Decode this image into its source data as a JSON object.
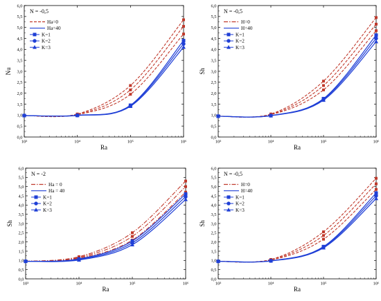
{
  "chart_data": [
    {
      "type": "line",
      "annotation": "N = -0,5",
      "xlabel": "Ra",
      "ylabel": "Nu",
      "xscale": "log",
      "xlim": [
        1000,
        1000000
      ],
      "ylim": [
        0.0,
        6.0
      ],
      "x_ticks": [
        "10³",
        "10⁴",
        "10⁵",
        "10⁶"
      ],
      "y_ticks": [
        "0,0",
        "0,5",
        "1,0",
        "1,5",
        "2,0",
        "2,5",
        "3,0",
        "3,5",
        "4,0",
        "4,5",
        "5,0",
        "5,5",
        "6,0"
      ],
      "legend_position": "top-left",
      "legend_entries": [
        {
          "label": "Ha=0",
          "style": "dashed",
          "color": "#c0392b"
        },
        {
          "label": "Ha=40",
          "style": "solid",
          "color": "#1f3fd6"
        },
        {
          "label": "K=1",
          "marker": "square",
          "color": "#1f3fd6"
        },
        {
          "label": "K=2",
          "marker": "circle",
          "color": "#1f3fd6"
        },
        {
          "label": "K=3",
          "marker": "triangle",
          "color": "#1f3fd6"
        }
      ],
      "x": [
        1000,
        10000,
        100000,
        1000000
      ],
      "series": [
        {
          "style": "dashed",
          "color": "#c0392b",
          "values": [
            0.98,
            1.05,
            2.35,
            5.35
          ]
        },
        {
          "style": "dashed",
          "color": "#c0392b",
          "values": [
            0.98,
            1.03,
            2.15,
            5.05
          ]
        },
        {
          "style": "dashed",
          "color": "#c0392b",
          "values": [
            0.98,
            1.02,
            1.95,
            4.7
          ]
        },
        {
          "style": "solid",
          "color": "#1f3fd6",
          "marker": "square",
          "values": [
            0.98,
            0.99,
            1.45,
            4.4
          ]
        },
        {
          "style": "solid",
          "color": "#1f3fd6",
          "marker": "circle",
          "values": [
            0.98,
            0.985,
            1.43,
            4.25
          ]
        },
        {
          "style": "solid",
          "color": "#1f3fd6",
          "marker": "triangle",
          "values": [
            0.98,
            0.98,
            1.4,
            4.1
          ]
        }
      ]
    },
    {
      "type": "line",
      "annotation": "N = -0,5",
      "xlabel": "Ra",
      "ylabel": "Sh",
      "xscale": "log",
      "xlim": [
        1000,
        1000000
      ],
      "ylim": [
        0.0,
        6.0
      ],
      "x_ticks": [
        "10³",
        "10⁴",
        "10⁵",
        "10⁶"
      ],
      "y_ticks": [
        "0,0",
        "0,5",
        "1,0",
        "1,5",
        "2,0",
        "2,5",
        "3,0",
        "3,5",
        "4,0",
        "4,5",
        "5,0",
        "5,5",
        "6,0"
      ],
      "legend_position": "top-left",
      "legend_entries": [
        {
          "label": "H=0",
          "style": "dashdot",
          "color": "#c0392b"
        },
        {
          "label": "H=40",
          "style": "solid",
          "color": "#1f3fd6"
        },
        {
          "label": "K=1",
          "marker": "square",
          "color": "#1f3fd6"
        },
        {
          "label": "K=2",
          "marker": "circle",
          "color": "#1f3fd6"
        },
        {
          "label": "K=3",
          "marker": "triangle",
          "color": "#1f3fd6"
        }
      ],
      "x": [
        1000,
        10000,
        100000,
        1000000
      ],
      "series": [
        {
          "style": "dashed",
          "color": "#c0392b",
          "values": [
            0.95,
            1.05,
            2.55,
            5.45
          ]
        },
        {
          "style": "dashed",
          "color": "#c0392b",
          "values": [
            0.95,
            1.03,
            2.35,
            5.15
          ]
        },
        {
          "style": "dashed",
          "color": "#c0392b",
          "values": [
            0.95,
            1.02,
            2.15,
            4.85
          ]
        },
        {
          "style": "solid",
          "color": "#1f3fd6",
          "marker": "square",
          "values": [
            0.95,
            0.98,
            1.75,
            4.65
          ]
        },
        {
          "style": "solid",
          "color": "#1f3fd6",
          "marker": "circle",
          "values": [
            0.95,
            0.975,
            1.72,
            4.5
          ]
        },
        {
          "style": "solid",
          "color": "#1f3fd6",
          "marker": "triangle",
          "values": [
            0.95,
            0.97,
            1.68,
            4.35
          ]
        }
      ]
    },
    {
      "type": "line",
      "annotation": "N = -2",
      "xlabel": "Ra",
      "ylabel": "Sh",
      "xscale": "log",
      "xlim": [
        1000,
        1000000
      ],
      "ylim": [
        0.0,
        6.0
      ],
      "x_ticks": [
        "10³",
        "10⁴",
        "10⁵",
        "10⁶"
      ],
      "y_ticks": [
        "0,0",
        "0,5",
        "1,0",
        "1,5",
        "2,0",
        "2,5",
        "3,0",
        "3,5",
        "4,0",
        "4,5",
        "5,0",
        "5,5",
        "6,0"
      ],
      "legend_position": "top-left",
      "legend_entries": [
        {
          "label": "Ha = 0",
          "style": "dashdot",
          "color": "#c0392b"
        },
        {
          "label": "Ha = 40",
          "style": "solid",
          "color": "#1f3fd6"
        },
        {
          "label": "K=1",
          "marker": "square",
          "color": "#1f3fd6"
        },
        {
          "label": "K=2",
          "marker": "circle",
          "color": "#1f3fd6"
        },
        {
          "label": "K=3",
          "marker": "triangle",
          "color": "#1f3fd6"
        }
      ],
      "x": [
        1000,
        10000,
        100000,
        1000000
      ],
      "series": [
        {
          "style": "dashdot",
          "color": "#c0392b",
          "values": [
            0.95,
            1.2,
            2.5,
            5.3
          ]
        },
        {
          "style": "dashdot",
          "color": "#c0392b",
          "values": [
            0.95,
            1.16,
            2.3,
            5.0
          ]
        },
        {
          "style": "dashdot",
          "color": "#c0392b",
          "values": [
            0.95,
            1.12,
            2.1,
            4.7
          ]
        },
        {
          "style": "solid",
          "color": "#1f3fd6",
          "marker": "square",
          "values": [
            0.95,
            1.08,
            2.05,
            4.6
          ]
        },
        {
          "style": "solid",
          "color": "#1f3fd6",
          "marker": "circle",
          "values": [
            0.95,
            1.05,
            1.95,
            4.45
          ]
        },
        {
          "style": "solid",
          "color": "#1f3fd6",
          "marker": "triangle",
          "values": [
            0.95,
            1.02,
            1.85,
            4.3
          ]
        }
      ]
    },
    {
      "type": "line",
      "annotation": "N = -0,5",
      "xlabel": "Ra",
      "ylabel": "Sh",
      "xscale": "log",
      "xlim": [
        1000,
        1000000
      ],
      "ylim": [
        0.0,
        6.0
      ],
      "x_ticks": [
        "10³",
        "10⁴",
        "10⁵",
        "10⁶"
      ],
      "y_ticks": [
        "0,0",
        "0,5",
        "1,0",
        "1,5",
        "2,0",
        "2,5",
        "3,0",
        "3,5",
        "4,0",
        "4,5",
        "5,0",
        "5,5",
        "6,0"
      ],
      "legend_position": "top-left",
      "legend_entries": [
        {
          "label": "H=0",
          "style": "dashdot",
          "color": "#c0392b"
        },
        {
          "label": "H=40",
          "style": "solid",
          "color": "#1f3fd6"
        },
        {
          "label": "K=1",
          "marker": "square",
          "color": "#1f3fd6"
        },
        {
          "label": "K=2",
          "marker": "circle",
          "color": "#1f3fd6"
        },
        {
          "label": "K=3",
          "marker": "triangle",
          "color": "#1f3fd6"
        }
      ],
      "x": [
        1000,
        10000,
        100000,
        1000000
      ],
      "series": [
        {
          "style": "dashed",
          "color": "#c0392b",
          "values": [
            0.95,
            1.05,
            2.55,
            5.45
          ]
        },
        {
          "style": "dashed",
          "color": "#c0392b",
          "values": [
            0.95,
            1.03,
            2.35,
            5.15
          ]
        },
        {
          "style": "dashed",
          "color": "#c0392b",
          "values": [
            0.95,
            1.02,
            2.15,
            4.85
          ]
        },
        {
          "style": "solid",
          "color": "#1f3fd6",
          "marker": "square",
          "values": [
            0.95,
            0.98,
            1.75,
            4.65
          ]
        },
        {
          "style": "solid",
          "color": "#1f3fd6",
          "marker": "circle",
          "values": [
            0.95,
            0.975,
            1.72,
            4.5
          ]
        },
        {
          "style": "solid",
          "color": "#1f3fd6",
          "marker": "triangle",
          "values": [
            0.95,
            0.97,
            1.68,
            4.35
          ]
        }
      ]
    }
  ]
}
